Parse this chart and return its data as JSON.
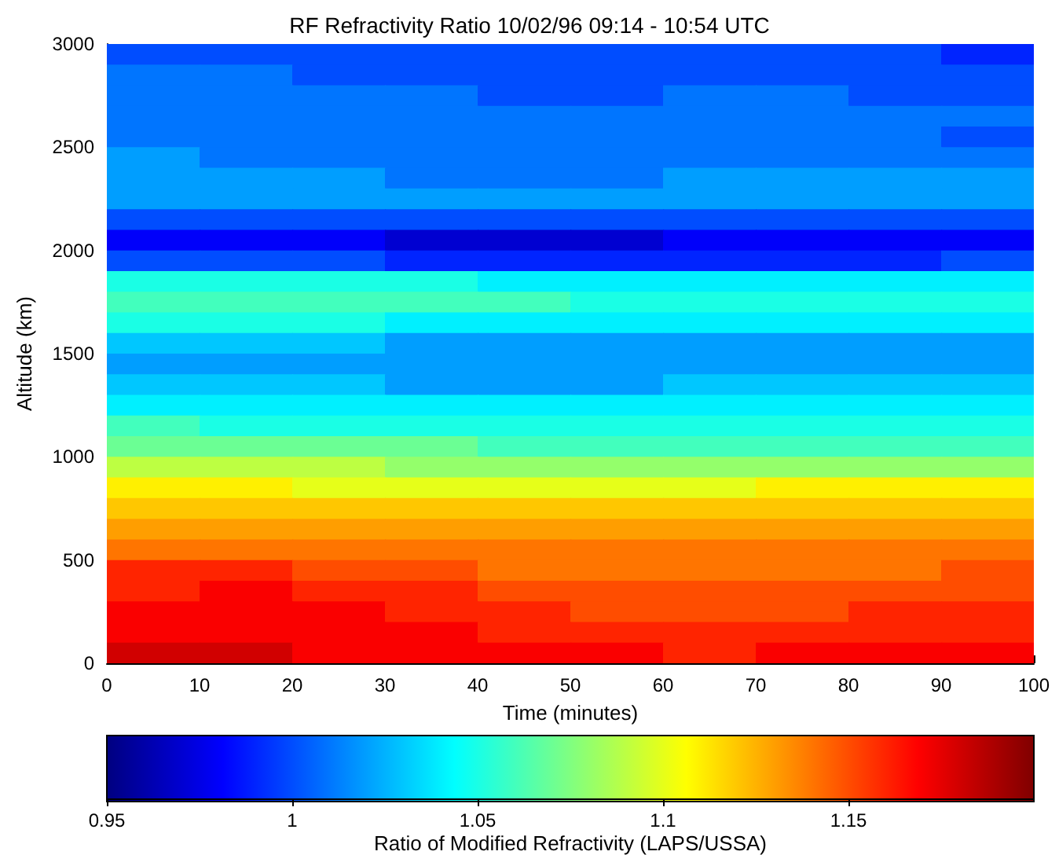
{
  "chart_data": {
    "type": "heatmap",
    "title": "RF Refractivity Ratio 10/02/96 09:14 - 10:54 UTC",
    "xlabel": "Time (minutes)",
    "ylabel": "Altitude (km)",
    "clabel": "Ratio of Modified Refractivity (LAPS/USSA)",
    "xlim": [
      0,
      100
    ],
    "xticks": [
      0,
      10,
      20,
      30,
      40,
      50,
      60,
      70,
      80,
      90,
      100
    ],
    "ylim": [
      0,
      3000
    ],
    "yticks": [
      0,
      500,
      1000,
      1500,
      2000,
      2500,
      3000
    ],
    "clim": [
      0.95,
      1.2
    ],
    "cticks": [
      0.95,
      1,
      1.05,
      1.1,
      1.15
    ],
    "cells": [
      [
        1.0,
        1.0,
        1.0,
        1.0,
        1.0,
        1.0,
        1.0,
        1.0,
        1.0,
        0.99
      ],
      [
        1.01,
        1.01,
        1.0,
        1.0,
        1.0,
        1.0,
        1.0,
        1.0,
        1.0,
        1.0
      ],
      [
        1.01,
        1.01,
        1.01,
        1.01,
        1.0,
        1.0,
        1.01,
        1.01,
        1.0,
        1.0
      ],
      [
        1.01,
        1.01,
        1.01,
        1.01,
        1.01,
        1.01,
        1.01,
        1.01,
        1.01,
        1.01
      ],
      [
        1.01,
        1.01,
        1.01,
        1.01,
        1.01,
        1.01,
        1.01,
        1.01,
        1.01,
        1.0
      ],
      [
        1.02,
        1.01,
        1.01,
        1.01,
        1.01,
        1.01,
        1.01,
        1.01,
        1.01,
        1.01
      ],
      [
        1.02,
        1.02,
        1.02,
        1.01,
        1.01,
        1.01,
        1.02,
        1.02,
        1.02,
        1.02
      ],
      [
        1.02,
        1.02,
        1.02,
        1.02,
        1.02,
        1.02,
        1.02,
        1.02,
        1.02,
        1.02
      ],
      [
        1.0,
        1.0,
        1.0,
        1.0,
        1.0,
        1.0,
        1.0,
        1.0,
        1.0,
        1.0
      ],
      [
        0.98,
        0.98,
        0.98,
        0.97,
        0.97,
        0.97,
        0.98,
        0.98,
        0.98,
        0.98
      ],
      [
        1.0,
        1.0,
        1.0,
        0.99,
        0.99,
        0.99,
        0.99,
        0.99,
        0.99,
        1.0
      ],
      [
        1.05,
        1.05,
        1.05,
        1.05,
        1.04,
        1.04,
        1.04,
        1.04,
        1.04,
        1.04
      ],
      [
        1.06,
        1.06,
        1.06,
        1.06,
        1.06,
        1.05,
        1.05,
        1.05,
        1.05,
        1.05
      ],
      [
        1.05,
        1.05,
        1.05,
        1.04,
        1.04,
        1.04,
        1.04,
        1.04,
        1.04,
        1.04
      ],
      [
        1.03,
        1.03,
        1.03,
        1.02,
        1.02,
        1.02,
        1.02,
        1.02,
        1.02,
        1.02
      ],
      [
        1.02,
        1.02,
        1.02,
        1.02,
        1.02,
        1.02,
        1.02,
        1.02,
        1.02,
        1.02
      ],
      [
        1.03,
        1.03,
        1.03,
        1.02,
        1.02,
        1.02,
        1.03,
        1.03,
        1.03,
        1.03
      ],
      [
        1.04,
        1.04,
        1.04,
        1.04,
        1.04,
        1.04,
        1.04,
        1.04,
        1.04,
        1.04
      ],
      [
        1.06,
        1.05,
        1.05,
        1.05,
        1.05,
        1.05,
        1.05,
        1.05,
        1.05,
        1.05
      ],
      [
        1.07,
        1.07,
        1.07,
        1.07,
        1.06,
        1.06,
        1.06,
        1.06,
        1.06,
        1.06
      ],
      [
        1.09,
        1.09,
        1.09,
        1.08,
        1.08,
        1.08,
        1.08,
        1.08,
        1.08,
        1.08
      ],
      [
        1.11,
        1.11,
        1.1,
        1.1,
        1.1,
        1.1,
        1.1,
        1.11,
        1.11,
        1.11
      ],
      [
        1.12,
        1.12,
        1.12,
        1.12,
        1.12,
        1.12,
        1.12,
        1.12,
        1.12,
        1.12
      ],
      [
        1.13,
        1.13,
        1.13,
        1.13,
        1.13,
        1.13,
        1.13,
        1.13,
        1.13,
        1.13
      ],
      [
        1.14,
        1.14,
        1.14,
        1.14,
        1.14,
        1.14,
        1.14,
        1.14,
        1.14,
        1.14
      ],
      [
        1.16,
        1.16,
        1.15,
        1.15,
        1.14,
        1.14,
        1.14,
        1.14,
        1.14,
        1.15
      ],
      [
        1.16,
        1.17,
        1.16,
        1.16,
        1.15,
        1.15,
        1.15,
        1.15,
        1.15,
        1.15
      ],
      [
        1.17,
        1.17,
        1.17,
        1.16,
        1.16,
        1.15,
        1.15,
        1.15,
        1.16,
        1.16
      ],
      [
        1.17,
        1.17,
        1.17,
        1.17,
        1.16,
        1.16,
        1.16,
        1.16,
        1.16,
        1.16
      ],
      [
        1.18,
        1.18,
        1.17,
        1.17,
        1.17,
        1.17,
        1.16,
        1.17,
        1.17,
        1.17
      ]
    ]
  }
}
